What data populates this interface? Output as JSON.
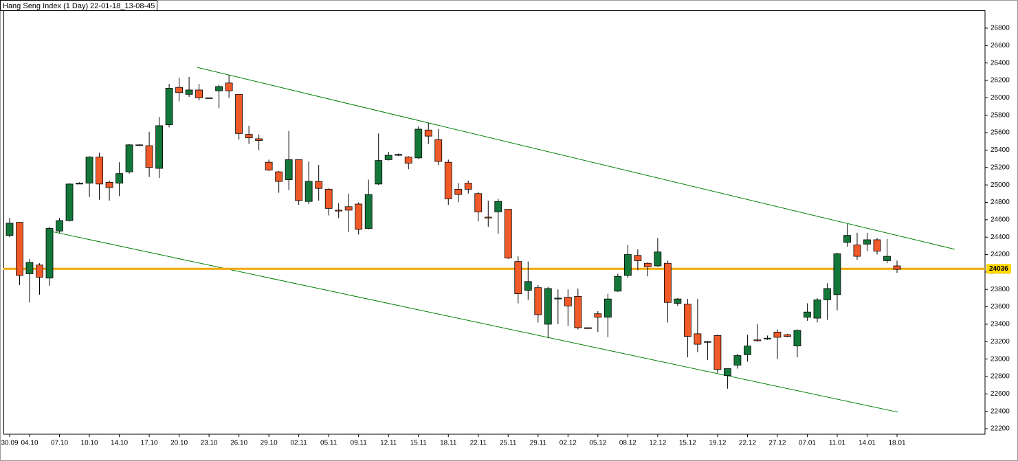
{
  "chart_data": {
    "type": "candlestick",
    "title": "Hang Seng Index (1 Day) 22-01-18_13-08-45",
    "categories": [
      "30.09",
      null,
      "04.10",
      null,
      null,
      "07.10",
      null,
      null,
      "10.10",
      null,
      null,
      "14.10",
      null,
      null,
      "17.10",
      null,
      null,
      "20.10",
      null,
      null,
      "23.10",
      null,
      null,
      "26.10",
      null,
      null,
      "29.10",
      null,
      null,
      "02.11",
      null,
      null,
      "05.11",
      null,
      null,
      "09.11",
      null,
      null,
      "12.11",
      null,
      null,
      "15.11",
      null,
      null,
      "18.11",
      null,
      null,
      "22.11",
      null,
      null,
      "25.11",
      null,
      null,
      "29.11",
      null,
      null,
      "02.12",
      null,
      null,
      "05.12",
      null,
      null,
      "08.12",
      null,
      null,
      "12.12",
      null,
      null,
      "15.12",
      null,
      null,
      "19.12",
      null,
      null,
      "22.12",
      null,
      null,
      "27.12",
      null,
      null,
      "07.01",
      null,
      null,
      "11.01",
      null,
      null,
      "14.01",
      null,
      null,
      "18.01"
    ],
    "open": [
      24420,
      24570,
      23980,
      24080,
      23930,
      24470,
      24590,
      25010,
      25020,
      25320,
      25030,
      25020,
      25150,
      25460,
      25450,
      25190,
      25690,
      26120,
      26040,
      26090,
      26000,
      26080,
      26170,
      26040,
      25580,
      25530,
      25260,
      25150,
      25060,
      25290,
      24810,
      25040,
      24950,
      24710,
      24750,
      24780,
      24500,
      25010,
      25290,
      25340,
      25320,
      25310,
      25630,
      25520,
      25260,
      24950,
      25020,
      24900,
      24630,
      24690,
      24720,
      24120,
      23790,
      23820,
      23400,
      23690,
      23710,
      23720,
      23360,
      23520,
      23480,
      23780,
      23960,
      24190,
      24100,
      24070,
      24100,
      23640,
      23630,
      23290,
      23200,
      23270,
      22810,
      22930,
      23050,
      23220,
      23230,
      23310,
      23280,
      23150,
      23480,
      23470,
      23680,
      23740,
      24340,
      24310,
      24320,
      24370,
      24130,
      24070
    ],
    "high": [
      24620,
      24570,
      24150,
      24100,
      24520,
      24620,
      25020,
      25030,
      25330,
      25370,
      25050,
      25260,
      25470,
      25470,
      25610,
      25780,
      26160,
      26230,
      26240,
      26160,
      26000,
      26150,
      26260,
      26040,
      25680,
      25580,
      25290,
      25160,
      25620,
      25290,
      25270,
      25230,
      24960,
      24790,
      24900,
      24800,
      25060,
      25590,
      25380,
      25360,
      25330,
      25670,
      25710,
      25640,
      25290,
      25020,
      25050,
      24920,
      24820,
      24840,
      24720,
      24180,
      24120,
      23850,
      23830,
      23800,
      23800,
      23810,
      23360,
      23550,
      23750,
      23980,
      24310,
      24260,
      24110,
      24390,
      24130,
      23700,
      23690,
      23690,
      23210,
      23280,
      22890,
      23060,
      23280,
      23400,
      23270,
      23340,
      23290,
      23340,
      23640,
      23700,
      23870,
      24220,
      24550,
      24450,
      24450,
      24390,
      24380,
      24130
    ],
    "low": [
      24400,
      23850,
      23650,
      23740,
      23840,
      24450,
      24580,
      25010,
      24860,
      24830,
      24820,
      24870,
      25130,
      25450,
      25090,
      25080,
      25660,
      25960,
      26010,
      25970,
      26000,
      25880,
      26000,
      25520,
      25470,
      25400,
      25160,
      24910,
      24940,
      24770,
      24780,
      24820,
      24650,
      24620,
      24460,
      24430,
      24490,
      25000,
      25280,
      25330,
      25180,
      25300,
      25470,
      25230,
      24770,
      24800,
      24900,
      24580,
      24520,
      24440,
      24150,
      23640,
      23680,
      23420,
      23240,
      23400,
      23380,
      23340,
      23350,
      23310,
      23250,
      23770,
      23930,
      24020,
      23950,
      24060,
      23420,
      23610,
      23020,
      23080,
      22990,
      22840,
      22660,
      22890,
      22970,
      23200,
      23220,
      23000,
      23250,
      23020,
      23440,
      23420,
      23450,
      23560,
      24290,
      24140,
      24240,
      24200,
      24100,
      23990
    ],
    "close": [
      24560,
      23960,
      24110,
      23940,
      24500,
      24590,
      25010,
      25020,
      25320,
      25010,
      24970,
      25130,
      25460,
      25460,
      25200,
      25680,
      26110,
      26060,
      26090,
      26000,
      26000,
      26130,
      26080,
      25590,
      25540,
      25510,
      25170,
      25040,
      25290,
      24820,
      25040,
      24960,
      24730,
      24700,
      24710,
      24490,
      24890,
      25280,
      25340,
      25350,
      25250,
      25640,
      25560,
      25270,
      24840,
      24890,
      24950,
      24690,
      24620,
      24810,
      24160,
      23750,
      23890,
      23510,
      23810,
      23700,
      23610,
      23360,
      23350,
      23480,
      23690,
      23950,
      24200,
      24130,
      24060,
      24230,
      23650,
      23690,
      23260,
      23170,
      23200,
      22880,
      22890,
      23040,
      23150,
      23210,
      23240,
      23250,
      23260,
      23330,
      23540,
      23680,
      23810,
      24210,
      24420,
      24180,
      24370,
      24240,
      24180,
      24030
    ],
    "up_color": "#13773a",
    "down_color": "#f05a28",
    "ylim": [
      22137,
      27005
    ],
    "yticks": [
      22200,
      22400,
      22600,
      22800,
      23000,
      23200,
      23400,
      23600,
      23800,
      24000,
      24200,
      24400,
      24600,
      24800,
      25000,
      25200,
      25400,
      25600,
      25800,
      26000,
      26200,
      26400,
      26600,
      26800
    ],
    "hline": 24036,
    "hline_color": "#f0a800",
    "trendlines": [
      {
        "color": "#008000",
        "x": [
          18.8,
          94.8
        ],
        "values": [
          26350,
          24260
        ]
      },
      {
        "color": "#008000",
        "x": [
          4.4,
          89.1
        ],
        "values": [
          24460,
          22390
        ]
      }
    ]
  }
}
